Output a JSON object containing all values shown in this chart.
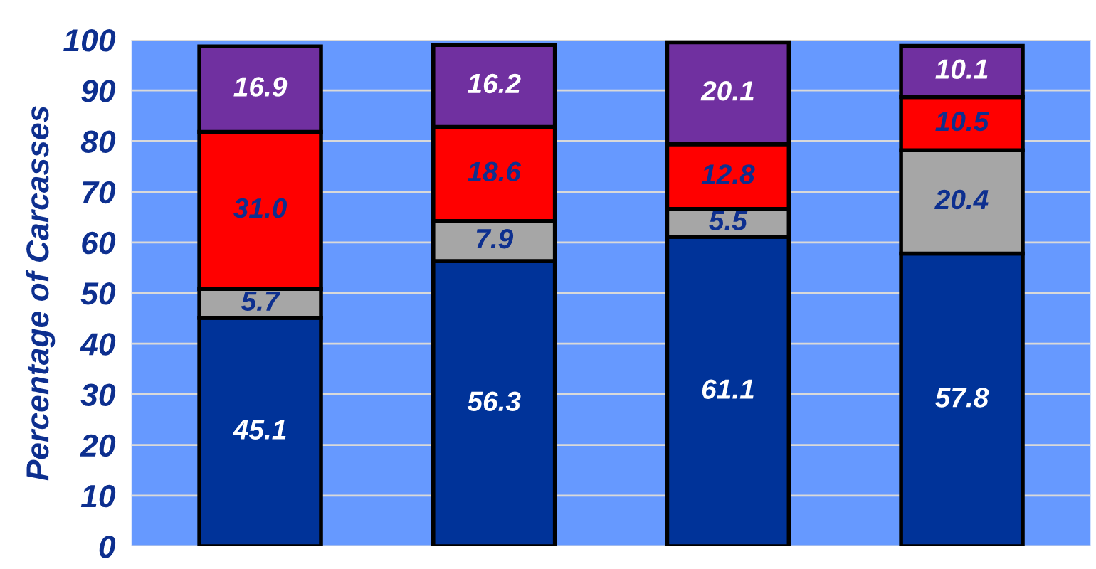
{
  "chart_data": {
    "type": "bar",
    "stacked": true,
    "ylabel": "Percentage of Carcasses",
    "categories": [
      null,
      null,
      null,
      null
    ],
    "series": [
      {
        "color": "#003399",
        "values": [
          45.1,
          56.3,
          61.1,
          57.8
        ],
        "value_labels": [
          "45.1",
          "56.3",
          "61.1",
          "57.8"
        ]
      },
      {
        "color": "#a6a6a6",
        "values": [
          5.7,
          7.9,
          5.5,
          20.4
        ],
        "value_labels": [
          "5.7",
          "7.9",
          "5.5",
          "20.4"
        ]
      },
      {
        "color": "#ff0000",
        "values": [
          31.0,
          18.6,
          12.8,
          10.5
        ],
        "value_labels": [
          "31.0",
          "18.6",
          "12.8",
          "10.5"
        ]
      },
      {
        "color": "#7030a0",
        "values": [
          16.9,
          16.2,
          20.1,
          10.1
        ],
        "value_labels": [
          "16.9",
          "16.2",
          "20.1",
          "10.1"
        ]
      }
    ],
    "ylim": [
      0,
      100
    ],
    "yticks": [
      0,
      10,
      20,
      30,
      40,
      50,
      60,
      70,
      80,
      90,
      100
    ],
    "grid": "y",
    "legend": false
  }
}
